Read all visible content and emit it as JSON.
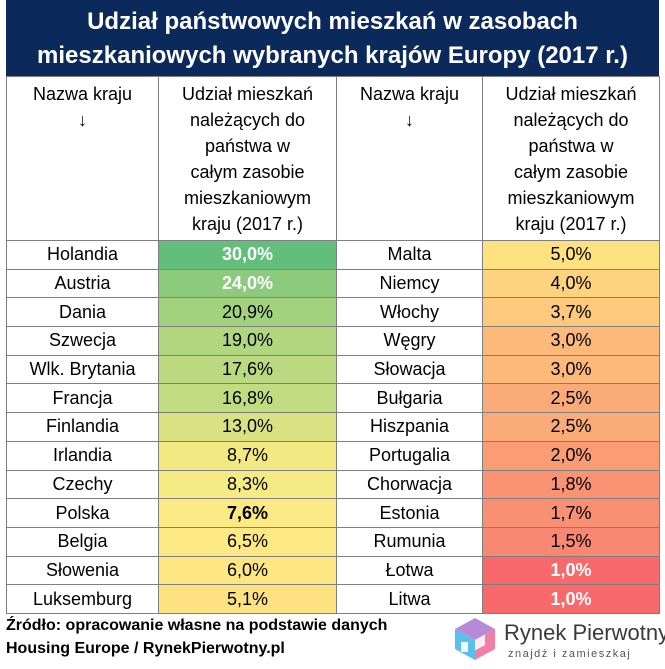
{
  "title": {
    "line1": "Udział państwowych mieszkań w zasobach",
    "line2": "mieszkaniowych wybranych krajów Europy (2017 r.)"
  },
  "headers": {
    "country_line1": "Nazwa kraju",
    "arrow": "↓",
    "share": [
      "Udział mieszkań",
      "należących do",
      "państwa w",
      "całym zasobie",
      "mieszkaniowym",
      "kraju (2017 r.)"
    ]
  },
  "left_rows": [
    {
      "country": "Holandia",
      "value": "30,0%",
      "color": "#63be7b",
      "bold": true,
      "white": true
    },
    {
      "country": "Austria",
      "value": "24,0%",
      "color": "#8ccb7e",
      "bold": true,
      "white": true
    },
    {
      "country": "Dania",
      "value": "20,9%",
      "color": "#a3d27f",
      "bold": false,
      "white": false
    },
    {
      "country": "Szwecja",
      "value": "19,0%",
      "color": "#b0d67f",
      "bold": false,
      "white": false
    },
    {
      "country": "Wlk. Brytania",
      "value": "17,6%",
      "color": "#bbd980",
      "bold": false,
      "white": false
    },
    {
      "country": "Francja",
      "value": "16,8%",
      "color": "#c1db80",
      "bold": false,
      "white": false
    },
    {
      "country": "Finlandia",
      "value": "13,0%",
      "color": "#d9e282",
      "bold": false,
      "white": false
    },
    {
      "country": "Irlandia",
      "value": "8,7%",
      "color": "#f3e983",
      "bold": false,
      "white": false
    },
    {
      "country": "Czechy",
      "value": "8,3%",
      "color": "#f6ea84",
      "bold": false,
      "white": false
    },
    {
      "country": "Polska",
      "value": "7,6%",
      "color": "#fae984",
      "bold": true,
      "white": false
    },
    {
      "country": "Belgia",
      "value": "6,5%",
      "color": "#fde983",
      "bold": false,
      "white": false
    },
    {
      "country": "Słowenia",
      "value": "6,0%",
      "color": "#fee683",
      "bold": false,
      "white": false
    },
    {
      "country": "Luksemburg",
      "value": "5,1%",
      "color": "#fee282",
      "bold": false,
      "white": false
    }
  ],
  "right_rows": [
    {
      "country": "Malta",
      "value": "5,0%",
      "color": "#fee282",
      "bold": false,
      "white": false
    },
    {
      "country": "Niemcy",
      "value": "4,0%",
      "color": "#fdd37f",
      "bold": false,
      "white": false
    },
    {
      "country": "Włochy",
      "value": "3,7%",
      "color": "#fdc97d",
      "bold": false,
      "white": false
    },
    {
      "country": "Węgry",
      "value": "3,0%",
      "color": "#fcb97a",
      "bold": false,
      "white": false
    },
    {
      "country": "Słowacja",
      "value": "3,0%",
      "color": "#fcb97a",
      "bold": false,
      "white": false
    },
    {
      "country": "Bułgaria",
      "value": "2,5%",
      "color": "#fbab78",
      "bold": false,
      "white": false
    },
    {
      "country": "Hiszpania",
      "value": "2,5%",
      "color": "#fbab78",
      "bold": false,
      "white": false
    },
    {
      "country": "Portugalia",
      "value": "2,0%",
      "color": "#fa9d75",
      "bold": false,
      "white": false
    },
    {
      "country": "Chorwacja",
      "value": "1,8%",
      "color": "#fa9374",
      "bold": false,
      "white": false
    },
    {
      "country": "Estonia",
      "value": "1,7%",
      "color": "#f98f73",
      "bold": false,
      "white": false
    },
    {
      "country": "Rumunia",
      "value": "1,5%",
      "color": "#f98872",
      "bold": false,
      "white": false
    },
    {
      "country": "Łotwa",
      "value": "1,0%",
      "color": "#f8696b",
      "bold": true,
      "white": true
    },
    {
      "country": "Litwa",
      "value": "1,0%",
      "color": "#f8696b",
      "bold": true,
      "white": true
    }
  ],
  "footer": {
    "line1": "Źródło: opracowanie własne na podstawie danych",
    "line2": "Housing Europe / RynekPierwotny.pl"
  },
  "logo": {
    "name": "Rynek Pierwotny",
    "tagline": "znajdź i zamieszkaj",
    "icon": "house-cube-icon"
  },
  "colors": {
    "title_bg": "#0b2a5b",
    "border": "#7f7f7f"
  }
}
